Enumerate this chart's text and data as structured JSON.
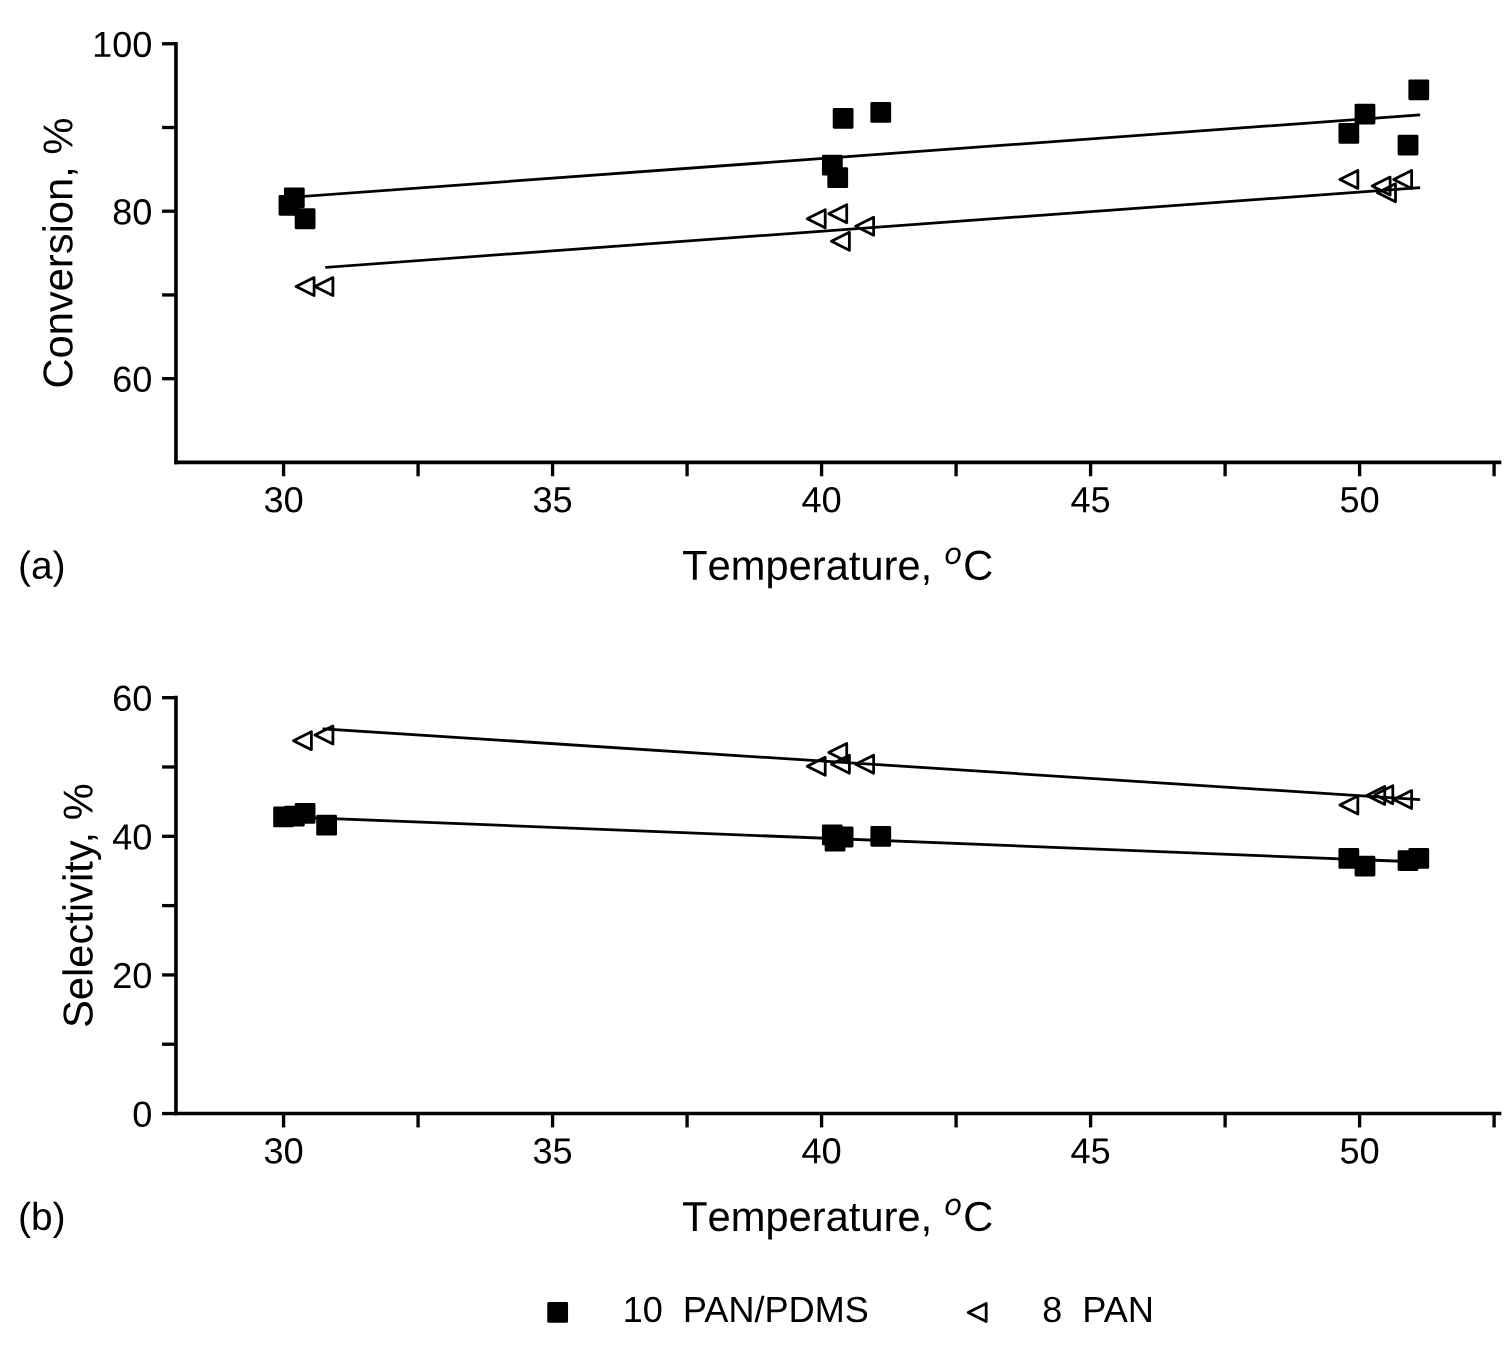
{
  "chart_data": [
    {
      "type": "scatter",
      "xlabel": "Temperature, $^{o}$C",
      "ylabel": "Conversion, %",
      "annotations": [
        "(a)"
      ],
      "xlim": [
        28,
        52.6
      ],
      "ylim": [
        50,
        100
      ],
      "xticks": [
        30,
        {
          "value": 32.5,
          "label": null
        },
        35,
        {
          "value": 37.5,
          "label": null
        },
        40,
        {
          "value": 42.5,
          "label": null
        },
        45,
        {
          "value": 47.5,
          "label": null
        },
        50,
        {
          "value": 52.5,
          "label": null
        }
      ],
      "yticks": [
        60,
        {
          "value": 70,
          "label": null
        },
        80,
        {
          "value": 90,
          "label": null
        },
        100
      ],
      "grid": false,
      "legend": false,
      "series": [
        {
          "type": "scatter",
          "marker": "square",
          "color": "#000000",
          "x": [
            30.1,
            30.2,
            30.4,
            40.2,
            40.3,
            40.4,
            41.1,
            49.8,
            50.1,
            50.9,
            51.1
          ],
          "values": [
            80.7,
            81.6,
            79.1,
            85.5,
            84.0,
            91.1,
            91.8,
            89.3,
            91.6,
            87.9,
            94.5
          ]
        },
        {
          "type": "scatter",
          "marker": "triangle",
          "color": "#000000",
          "x": [
            30.4,
            30.75,
            39.9,
            40.3,
            40.35,
            40.8,
            49.8,
            50.4,
            50.5,
            50.8
          ],
          "values": [
            71.0,
            71.0,
            79.1,
            79.7,
            76.4,
            78.2,
            83.8,
            83.0,
            82.2,
            83.8
          ]
        },
        {
          "type": "line",
          "marker": "none",
          "color": "#000000",
          "x": [
            30.0,
            51.1
          ],
          "values": [
            81.6,
            91.5
          ]
        },
        {
          "type": "line",
          "marker": "none",
          "color": "#000000",
          "x": [
            30.8,
            51.1
          ],
          "values": [
            73.3,
            82.8
          ]
        }
      ]
    },
    {
      "type": "scatter",
      "xlabel": "Temperature, $^{o}$C",
      "ylabel": "Selectivity, %",
      "annotations": [
        "(b)"
      ],
      "xlim": [
        28,
        52.6
      ],
      "ylim": [
        0,
        60
      ],
      "xticks": [
        30,
        {
          "value": 32.5,
          "label": null
        },
        35,
        {
          "value": 37.5,
          "label": null
        },
        40,
        {
          "value": 42.5,
          "label": null
        },
        45,
        {
          "value": 47.5,
          "label": null
        },
        50,
        {
          "value": 52.5,
          "label": null
        }
      ],
      "yticks": [
        0,
        {
          "value": 10,
          "label": null
        },
        20,
        {
          "value": 30,
          "label": null
        },
        40,
        {
          "value": 50,
          "label": null
        },
        60
      ],
      "grid": false,
      "legend": "bottom",
      "series": [
        {
          "type": "scatter",
          "name": "10  PAN/PDMS",
          "marker": "square",
          "color": "#000000",
          "x": [
            30.0,
            30.2,
            30.4,
            30.8,
            40.2,
            40.25,
            40.4,
            41.1,
            49.8,
            50.1,
            50.9,
            51.1
          ],
          "values": [
            42.8,
            42.9,
            43.3,
            41.6,
            40.2,
            39.3,
            39.9,
            40.0,
            36.8,
            35.7,
            36.5,
            36.8
          ]
        },
        {
          "type": "scatter",
          "name": "8  PAN",
          "marker": "triangle",
          "color": "#000000",
          "x": [
            30.35,
            30.75,
            39.9,
            40.3,
            40.35,
            40.8,
            49.8,
            50.3,
            50.45,
            50.8
          ],
          "values": [
            53.8,
            54.6,
            50.1,
            52.1,
            50.4,
            50.4,
            44.5,
            45.9,
            46.0,
            45.3
          ]
        },
        {
          "type": "line",
          "marker": "none",
          "color": "#000000",
          "x": [
            30.75,
            51.1
          ],
          "values": [
            55.5,
            45.3
          ]
        },
        {
          "type": "line",
          "marker": "none",
          "color": "#000000",
          "x": [
            30.1,
            51.1
          ],
          "values": [
            42.8,
            36.3
          ]
        }
      ]
    }
  ]
}
